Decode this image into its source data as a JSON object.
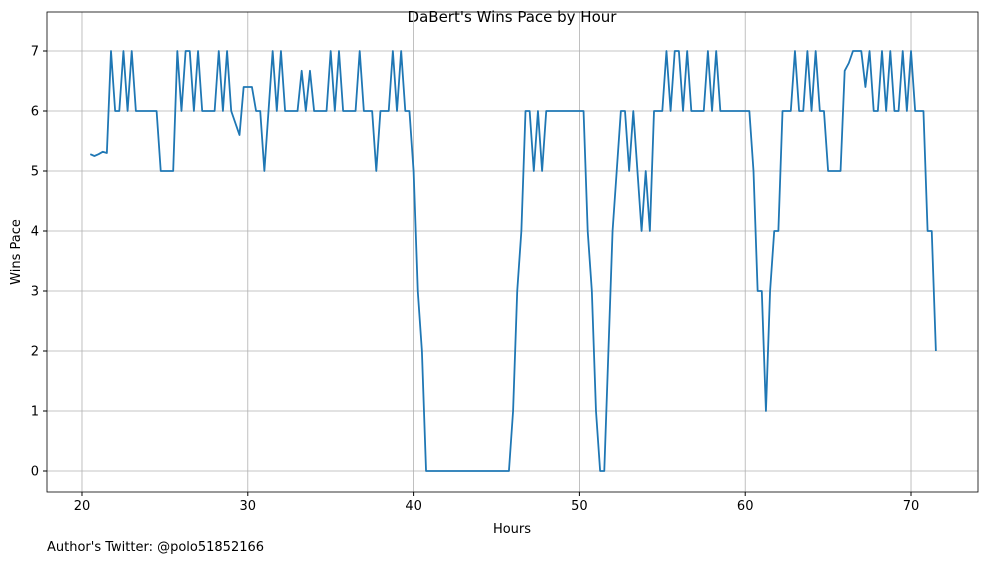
{
  "chart_data": {
    "type": "line",
    "title": "DaBert's Wins Pace by Hour",
    "xlabel": "Hours",
    "ylabel": "Wins Pace",
    "annotation": "Author's Twitter: @polo51852166",
    "x": [
      20.5,
      20.75,
      21,
      21.25,
      21.5,
      21.75,
      22,
      22.25,
      22.5,
      22.75,
      23,
      23.25,
      23.5,
      24.5,
      24.75,
      25,
      25.5,
      25.75,
      26,
      26.25,
      26.5,
      26.75,
      27,
      27.25,
      27.5,
      28,
      28.25,
      28.5,
      28.75,
      29,
      29.5,
      29.75,
      30,
      30.25,
      30.5,
      30.75,
      31,
      31.25,
      31.5,
      31.75,
      32,
      32.25,
      33,
      33.25,
      33.5,
      33.75,
      34,
      34.75,
      35,
      35.25,
      35.5,
      35.75,
      36.5,
      36.75,
      37,
      37.5,
      37.75,
      38,
      38.5,
      38.75,
      39,
      39.25,
      39.5,
      39.75,
      40,
      40.25,
      40.5,
      40.75,
      45.75,
      46,
      46.25,
      46.5,
      46.75,
      47,
      47.25,
      47.5,
      47.75,
      48,
      50.25,
      50.5,
      50.75,
      51,
      51.25,
      51.5,
      51.75,
      52,
      52.25,
      52.5,
      52.75,
      53,
      53.25,
      53.5,
      53.75,
      54,
      54.25,
      54.5,
      55,
      55.25,
      55.5,
      55.75,
      56,
      56.25,
      56.5,
      56.75,
      57.5,
      57.75,
      58,
      58.25,
      58.5,
      60.25,
      60.5,
      60.75,
      61,
      61.25,
      61.5,
      61.75,
      62,
      62.25,
      62.75,
      63,
      63.25,
      63.5,
      63.75,
      64,
      64.25,
      64.5,
      64.75,
      65,
      65.75,
      66,
      66.25,
      66.5,
      67,
      67.25,
      67.5,
      67.75,
      68,
      68.25,
      68.5,
      68.75,
      69,
      69.25,
      69.5,
      69.75,
      70,
      70.25,
      70.75,
      71,
      71.25,
      71.5
    ],
    "series": [
      {
        "name": "Wins Pace",
        "color": "#1f77b4",
        "values": [
          5.28,
          5.25,
          5.28,
          5.32,
          5.3,
          7,
          6,
          6,
          7,
          6,
          7,
          6,
          6,
          6,
          5,
          5,
          5,
          7,
          6,
          7,
          7,
          6,
          7,
          6,
          6,
          6,
          7,
          6,
          7,
          6,
          5.6,
          6.4,
          6.4,
          6.4,
          6,
          6,
          5,
          6,
          7,
          6,
          7,
          6,
          6,
          6.67,
          6,
          6.67,
          6,
          6,
          7,
          6,
          7,
          6,
          6,
          7,
          6,
          6,
          5,
          6,
          6,
          7,
          6,
          7,
          6,
          6,
          5,
          3,
          2,
          0,
          0,
          1,
          3,
          4,
          6,
          6,
          5,
          6,
          5,
          6,
          6,
          4,
          3,
          1,
          0,
          0,
          2,
          4,
          5,
          6,
          6,
          5,
          6,
          5,
          4,
          5,
          4,
          6,
          6,
          7,
          6,
          7,
          7,
          6,
          7,
          6,
          6,
          7,
          6,
          7,
          6,
          6,
          5,
          3,
          3,
          1,
          3,
          4,
          4,
          6,
          6,
          7,
          6,
          6,
          7,
          6,
          7,
          6,
          6,
          5,
          5,
          6.67,
          6.8,
          7,
          7,
          6.4,
          7,
          6,
          6,
          7,
          6,
          7,
          6,
          6,
          7,
          6,
          7,
          6,
          6,
          4,
          4,
          2
        ]
      }
    ],
    "xlim": [
      17.89,
      74.04
    ],
    "ylim": [
      -0.35,
      7.65
    ],
    "xticks": [
      20,
      30,
      40,
      50,
      60,
      70
    ],
    "yticks": [
      0,
      1,
      2,
      3,
      4,
      5,
      6,
      7
    ],
    "grid": true
  }
}
